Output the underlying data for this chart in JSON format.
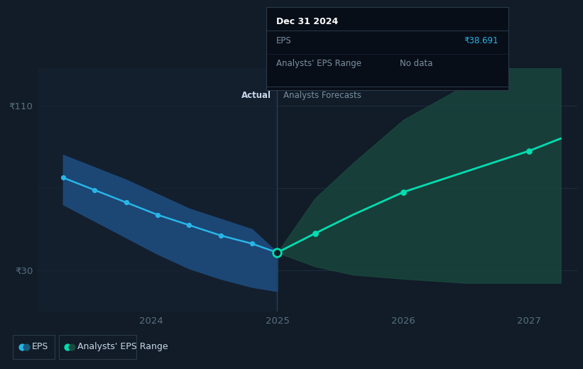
{
  "bg_color": "#111c28",
  "plot_bg_color": "#111c28",
  "grid_color": "#1e2d3d",
  "left_shade_color": "#162030",
  "tooltip_title": "Dec 31 2024",
  "tooltip_eps_label": "EPS",
  "tooltip_eps_value": "₹38.691",
  "tooltip_range_label": "Analysts' EPS Range",
  "tooltip_range_value": "No data",
  "tooltip_bg": "#080e18",
  "tooltip_border": "#2a3a4a",
  "ylabel_110": "₹110",
  "ylabel_30": "₹30",
  "actual_label": "Actual",
  "forecast_label": "Analysts Forecasts",
  "legend_eps": "EPS",
  "legend_range": "Analysts' EPS Range",
  "divider_x": 2025.0,
  "actual_x": [
    2023.3,
    2023.55,
    2023.8,
    2024.05,
    2024.3,
    2024.55,
    2024.8,
    2025.0
  ],
  "actual_y": [
    75,
    69,
    63,
    57,
    52,
    47,
    43,
    38.7
  ],
  "actual_upper": [
    86,
    80,
    74,
    67,
    60,
    55,
    50,
    38.7
  ],
  "actual_lower": [
    62,
    54,
    46,
    38,
    31,
    26,
    22,
    20
  ],
  "forecast_x": [
    2025.0,
    2025.3,
    2025.6,
    2026.0,
    2026.5,
    2027.0,
    2027.25
  ],
  "forecast_y": [
    38.7,
    48,
    57,
    68,
    78,
    88,
    94
  ],
  "forecast_upper": [
    38.7,
    65,
    82,
    103,
    120,
    138,
    150
  ],
  "forecast_lower": [
    38.7,
    32,
    28,
    26,
    24,
    24,
    24
  ],
  "eps_color": "#29b5e8",
  "forecast_color": "#00ddb0",
  "actual_fill_color": "#1e4d80",
  "forecast_fill_color": "#1a4a40",
  "divider_color": "#2a4060",
  "text_color": "#7a8fa0",
  "bright_text": "#c8d8e8",
  "tick_color": "#5a7080",
  "ylim_min": 10,
  "ylim_max": 128,
  "xlim_min": 2023.1,
  "xlim_max": 2027.38
}
